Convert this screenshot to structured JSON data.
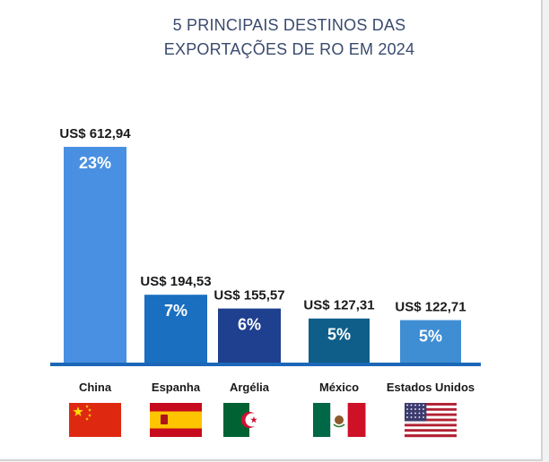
{
  "chart_data": {
    "type": "bar",
    "title_lines": [
      "5 PRINCIPAIS DESTINOS DAS",
      "EXPORTAÇÕES DE RO EM 2024"
    ],
    "categories": [
      "China",
      "Espanha",
      "Argélia",
      "México",
      "Estados Unidos"
    ],
    "values": [
      612.94,
      194.53,
      155.57,
      127.31,
      122.71
    ],
    "value_labels": [
      "US$ 612,94",
      "US$ 194,53",
      "US$ 155,57",
      "US$ 127,31",
      "US$ 122,71"
    ],
    "percent_labels": [
      "23%",
      "7%",
      "6%",
      "5%",
      "5%"
    ],
    "bar_colors": [
      "#4a90e2",
      "#1a6fc0",
      "#1f3f8f",
      "#0f5e8a",
      "#3f8ed4"
    ],
    "axis_color": "#1c67b8",
    "flags": [
      "china-flag",
      "spain-flag",
      "algeria-flag",
      "mexico-flag",
      "usa-flag"
    ],
    "ylim": [
      0,
      612.94
    ],
    "grid": false,
    "legend": "none"
  }
}
